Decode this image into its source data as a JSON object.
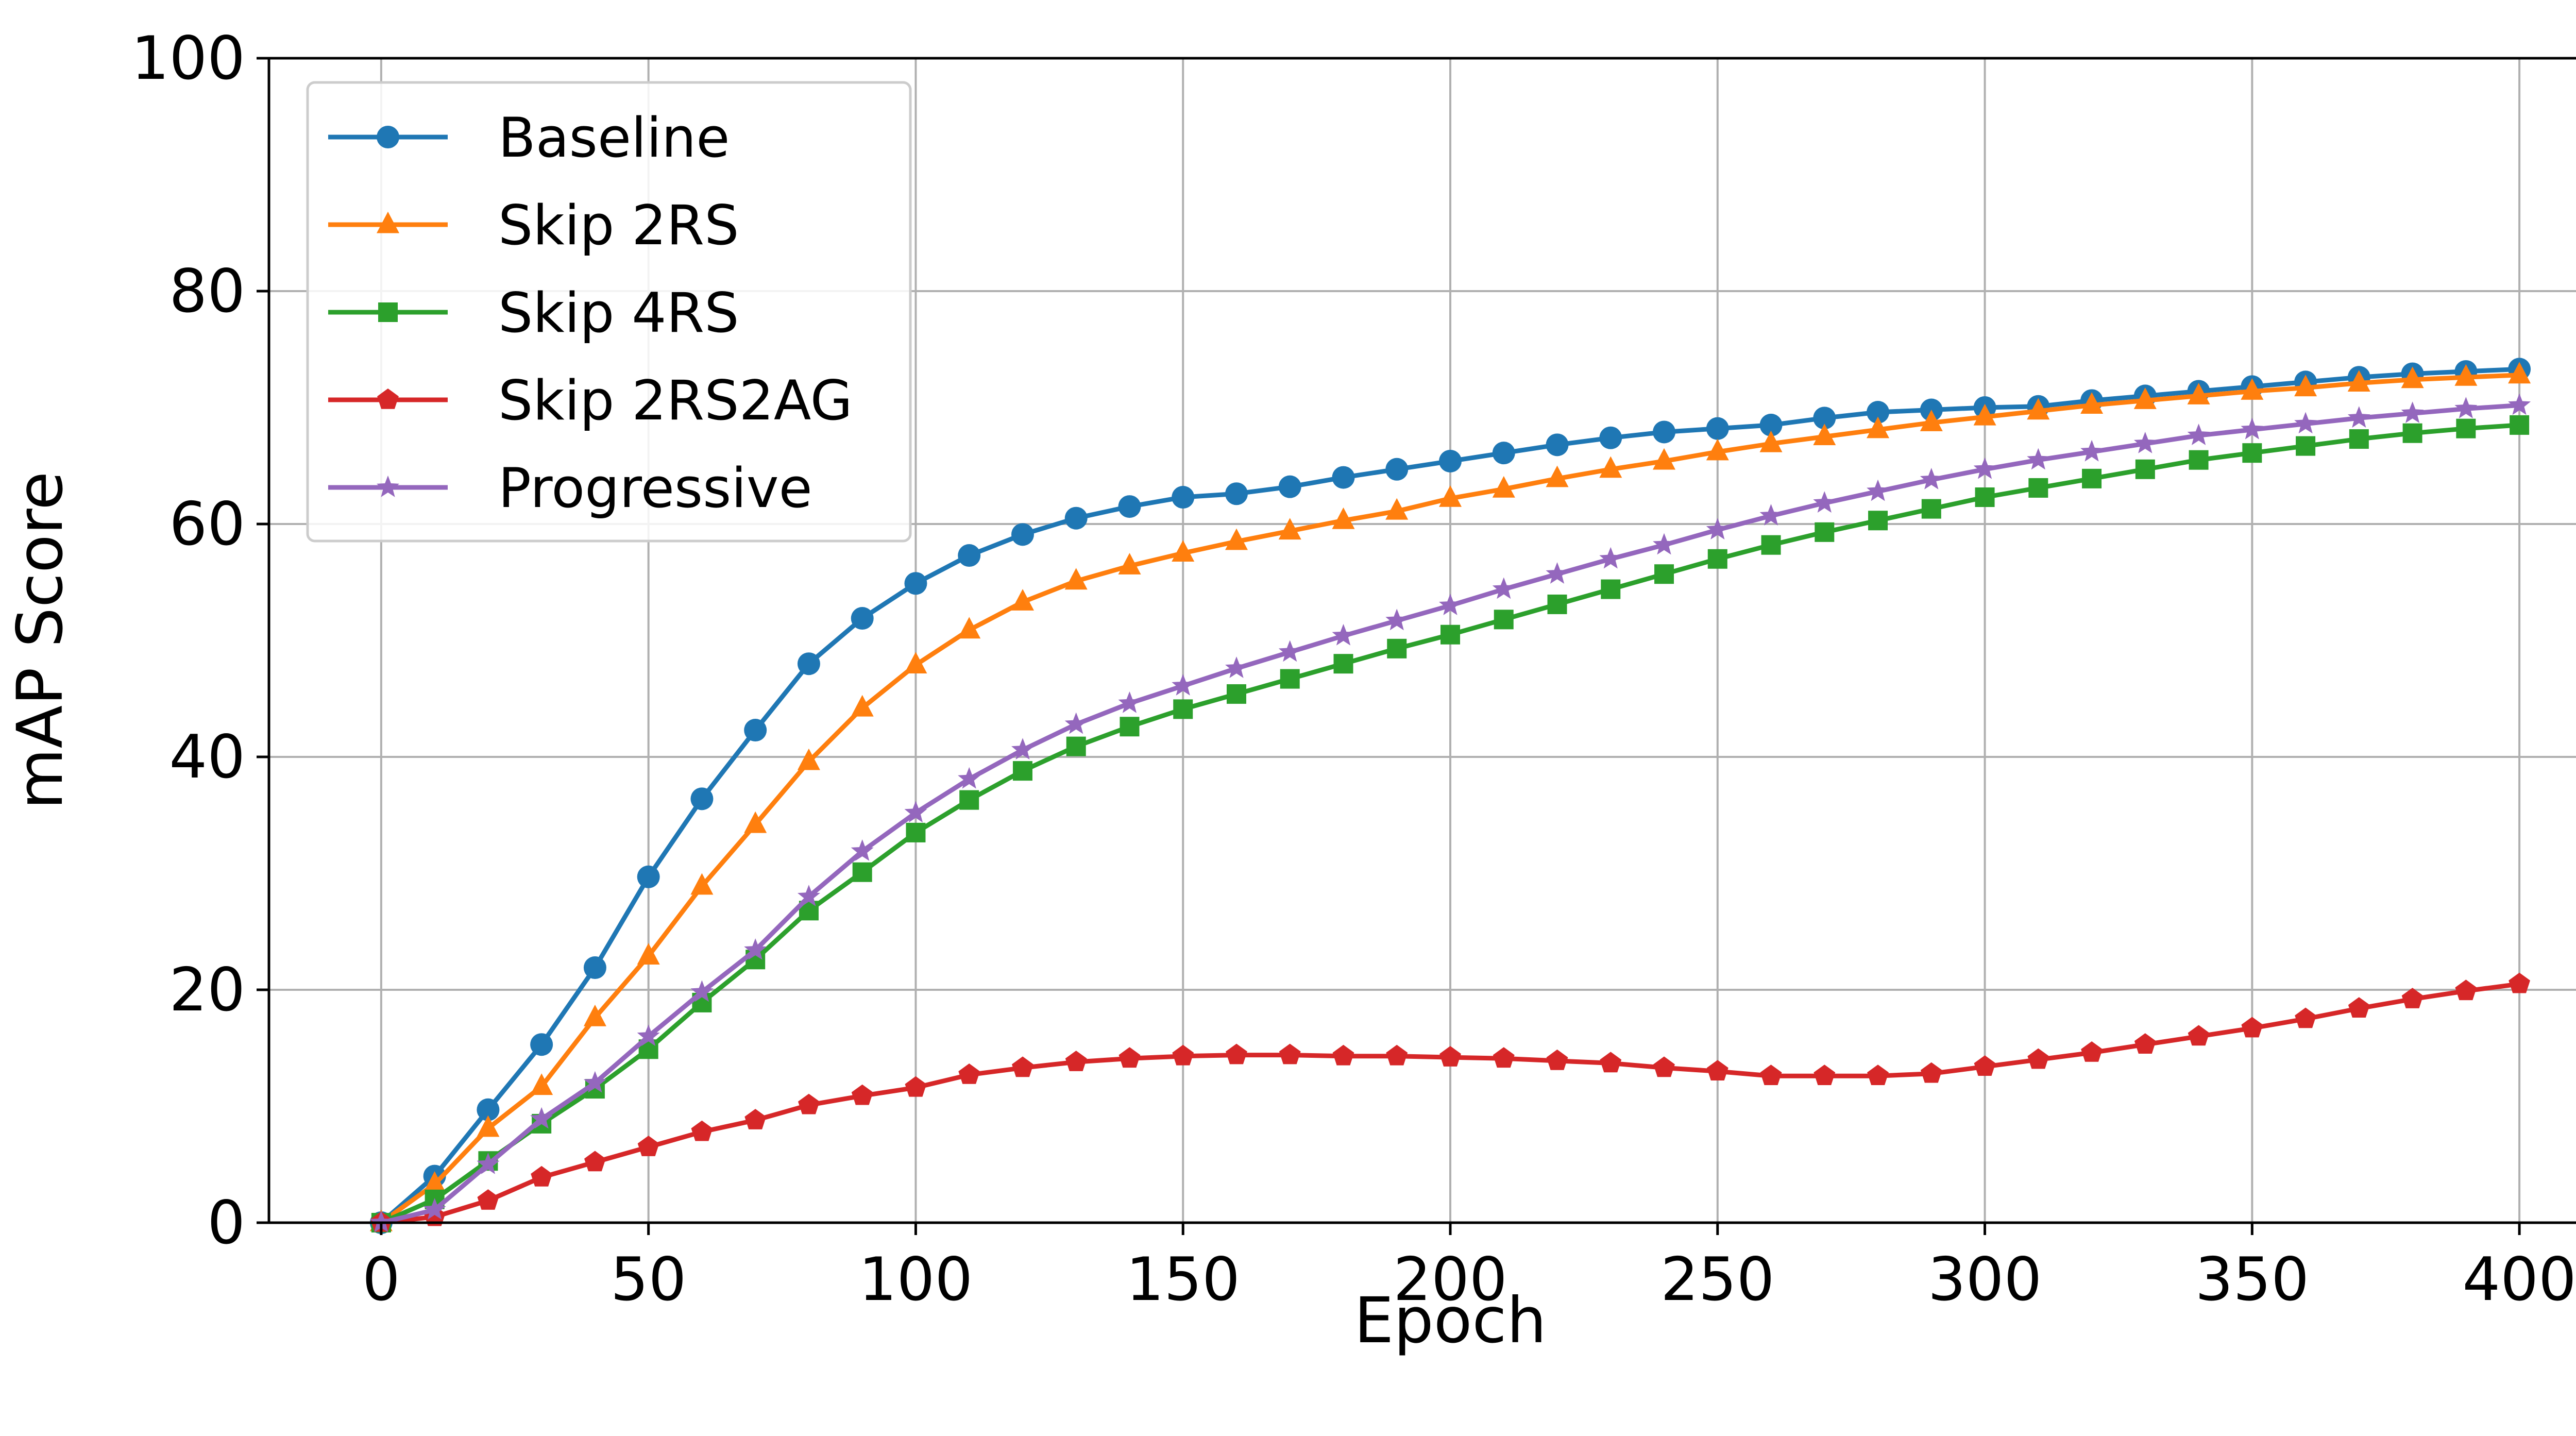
{
  "chart_data": {
    "type": "line",
    "title": "",
    "xlabel": "Epoch",
    "ylabel": "mAP Score",
    "xlim": [
      -21,
      421
    ],
    "ylim": [
      0,
      100
    ],
    "xticks": [
      0,
      50,
      100,
      150,
      200,
      250,
      300,
      350,
      400
    ],
    "yticks": [
      0,
      20,
      40,
      60,
      80,
      100
    ],
    "grid": true,
    "legend_position": "upper left",
    "x": [
      0,
      10,
      20,
      30,
      40,
      50,
      60,
      70,
      80,
      90,
      100,
      110,
      120,
      130,
      140,
      150,
      160,
      170,
      180,
      190,
      200,
      210,
      220,
      230,
      240,
      250,
      260,
      270,
      280,
      290,
      300,
      310,
      320,
      330,
      340,
      350,
      360,
      370,
      380,
      390,
      400
    ],
    "series": [
      {
        "name": "Baseline",
        "color": "#1f77b4",
        "marker": "circle",
        "values": [
          0.0,
          4.0,
          9.7,
          15.3,
          21.9,
          29.7,
          36.4,
          42.3,
          48.0,
          51.9,
          54.9,
          57.3,
          59.1,
          60.5,
          61.5,
          62.3,
          62.6,
          63.2,
          64.0,
          64.7,
          65.4,
          66.1,
          66.8,
          67.4,
          67.9,
          68.2,
          68.5,
          69.1,
          69.6,
          69.8,
          70.0,
          70.1,
          70.6,
          71.0,
          71.4,
          71.8,
          72.2,
          72.6,
          72.9,
          73.1,
          73.3
        ]
      },
      {
        "name": "Skip 2RS",
        "color": "#ff7f0e",
        "marker": "triangle",
        "values": [
          0.0,
          3.3,
          8.1,
          11.7,
          17.6,
          22.9,
          28.9,
          34.2,
          39.6,
          44.2,
          47.9,
          50.9,
          53.3,
          55.1,
          56.4,
          57.5,
          58.5,
          59.4,
          60.3,
          61.1,
          62.2,
          63.0,
          63.9,
          64.7,
          65.4,
          66.2,
          66.9,
          67.5,
          68.1,
          68.7,
          69.2,
          69.7,
          70.2,
          70.6,
          71.0,
          71.4,
          71.7,
          72.1,
          72.4,
          72.6,
          72.8
        ]
      },
      {
        "name": "Skip 4RS",
        "color": "#2ca02c",
        "marker": "square",
        "values": [
          0.0,
          2.0,
          5.3,
          8.5,
          11.5,
          14.9,
          18.9,
          22.6,
          26.8,
          30.1,
          33.5,
          36.3,
          38.8,
          40.9,
          42.6,
          44.1,
          45.4,
          46.7,
          48.0,
          49.3,
          50.5,
          51.8,
          53.1,
          54.4,
          55.7,
          57.0,
          58.2,
          59.3,
          60.3,
          61.3,
          62.3,
          63.1,
          63.9,
          64.7,
          65.5,
          66.1,
          66.7,
          67.3,
          67.8,
          68.2,
          68.5
        ]
      },
      {
        "name": "Skip 2RS2AG",
        "color": "#d62728",
        "marker": "pentagon",
        "values": [
          0.0,
          0.5,
          1.9,
          3.9,
          5.2,
          6.5,
          7.8,
          8.8,
          10.1,
          10.9,
          11.6,
          12.7,
          13.3,
          13.8,
          14.1,
          14.3,
          14.4,
          14.4,
          14.3,
          14.3,
          14.2,
          14.1,
          13.9,
          13.7,
          13.3,
          13.0,
          12.6,
          12.6,
          12.6,
          12.8,
          13.4,
          14.0,
          14.6,
          15.3,
          16.0,
          16.7,
          17.5,
          18.4,
          19.2,
          19.9,
          20.5
        ]
      },
      {
        "name": "Progressive",
        "color": "#9467bd",
        "marker": "star",
        "values": [
          0.0,
          1.1,
          5.0,
          8.9,
          12.0,
          16.0,
          19.8,
          23.4,
          28.0,
          31.9,
          35.2,
          38.1,
          40.6,
          42.8,
          44.6,
          46.1,
          47.6,
          49.0,
          50.4,
          51.7,
          53.0,
          54.4,
          55.7,
          57.0,
          58.2,
          59.5,
          60.7,
          61.8,
          62.8,
          63.8,
          64.7,
          65.5,
          66.2,
          66.9,
          67.6,
          68.1,
          68.6,
          69.1,
          69.5,
          69.9,
          70.2
        ]
      }
    ]
  }
}
